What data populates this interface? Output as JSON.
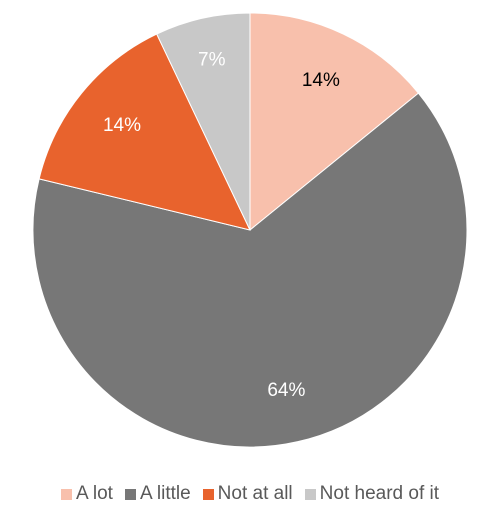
{
  "chart_data": {
    "type": "pie",
    "title": "",
    "categories": [
      "A lot",
      "A little",
      "Not at all",
      "Not heard of it"
    ],
    "values": [
      14,
      64,
      14,
      7
    ],
    "labels": [
      "14%",
      "64%",
      "14%",
      "7%"
    ],
    "colors": [
      "#F8C0AC",
      "#777777",
      "#E8632D",
      "#C8C8C8"
    ],
    "label_colors": [
      "#000000",
      "#ffffff",
      "#ffffff",
      "#ffffff"
    ],
    "start_angle_deg": 0,
    "direction": "clockwise",
    "legend_position": "bottom"
  }
}
